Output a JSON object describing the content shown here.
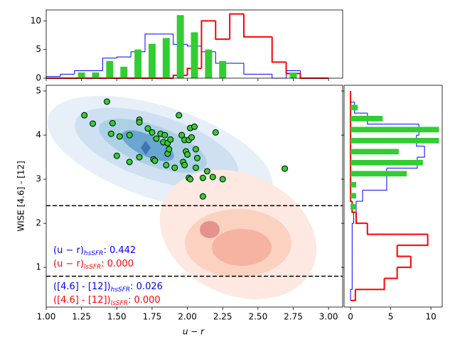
{
  "chart_data": [
    {
      "type": "scatter",
      "xlabel": "u − r",
      "ylabel": "WISE [4.6] - [12]",
      "color": "#32cd32",
      "x": [
        1.27,
        1.33,
        1.43,
        1.47,
        1.46,
        1.52,
        1.5,
        1.59,
        1.59,
        1.66,
        1.66,
        1.66,
        1.72,
        1.75,
        1.76,
        1.77,
        1.78,
        1.81,
        1.83,
        1.84,
        1.85,
        1.86,
        1.86,
        1.87,
        1.88,
        1.91,
        1.94,
        1.96,
        1.99,
        1.98,
        2.01,
        2.02,
        2.05,
        2.06,
        2.07,
        2.03,
        1.97,
        1.98,
        2.01,
        2.02,
        2.06,
        2.11,
        2.14,
        2.11,
        2.18,
        2.25,
        2.2,
        2.69,
        2.0
      ],
      "y": [
        4.45,
        4.26,
        4.76,
        4.27,
        4.03,
        3.97,
        3.53,
        4.0,
        3.39,
        4.35,
        4.29,
        3.5,
        4.15,
        4.06,
        3.45,
        3.42,
        3.92,
        4.03,
        3.84,
        4.0,
        3.32,
        3.82,
        3.58,
        3.68,
        3.9,
        3.26,
        4.45,
        4.0,
        3.63,
        3.89,
        3.89,
        4.16,
        4.19,
        3.68,
        3.48,
        3.95,
        3.39,
        3.32,
        3.03,
        3.0,
        3.26,
        3.03,
        3.18,
        2.61,
        3.05,
        3.0,
        4.06,
        3.24,
        3.56
      ],
      "xlim": [
        1.0,
        3.1
      ],
      "ylim": [
        0.1,
        5.13
      ],
      "xticks": [
        {
          "value": 1.0,
          "label": "1.00"
        },
        {
          "value": 1.25,
          "label": "1.25"
        },
        {
          "value": 1.5,
          "label": "1.50"
        },
        {
          "value": 1.75,
          "label": "1.75"
        },
        {
          "value": 2.0,
          "label": "2.00"
        },
        {
          "value": 2.25,
          "label": "2.25"
        },
        {
          "value": 2.5,
          "label": "2.50"
        },
        {
          "value": 2.75,
          "label": "2.75"
        },
        {
          "value": 3.0,
          "label": "3.00"
        }
      ],
      "yticks": [
        1,
        2,
        3,
        4,
        5
      ],
      "hlines": [
        2.4,
        0.8
      ],
      "annotations": [
        {
          "label": "(u − r)",
          "sub": "hsSFR",
          "value": ":   0.442",
          "color": "#0000ff"
        },
        {
          "label": "(u − r)",
          "sub": "lsSFR",
          "value": ":   0.000",
          "color": "#ff0000"
        },
        {
          "label": "([4.6] - [12])",
          "sub": "hsSFR",
          "value": ":   0.026",
          "color": "#0000ff"
        },
        {
          "label": "([4.6] - [12])",
          "sub": "lsSFR",
          "value": ":   0.000",
          "color": "#ff0000"
        }
      ]
    },
    {
      "type": "histogram",
      "orientation": "vertical",
      "bins": [
        1.0,
        1.1,
        1.2,
        1.3,
        1.4,
        1.5,
        1.6,
        1.7,
        1.8,
        1.9,
        2.0,
        2.1,
        2.2,
        2.3,
        2.4,
        2.5,
        2.6,
        2.7,
        2.8,
        2.9,
        3.0
      ],
      "xlim": [
        1.0,
        3.1
      ],
      "ylim": [
        0,
        11.9
      ],
      "xticks": [
        1.0,
        1.25,
        1.5,
        1.75,
        2.0,
        2.25,
        2.5,
        2.75,
        3.0
      ],
      "yticks": [
        0,
        5,
        10
      ],
      "series": [
        {
          "style": "step",
          "color": "#0000ff",
          "values": [
            0.3,
            0.7,
            1.3,
            1.3,
            3.5,
            3.7,
            4.6,
            7.7,
            7.7,
            5.9,
            5.6,
            4.6,
            2.6,
            2.6,
            0.7,
            0.7,
            0,
            1.3,
            0,
            0
          ]
        },
        {
          "style": "step",
          "color": "#ff0000",
          "values": [
            0,
            0,
            0,
            0,
            0,
            0,
            0,
            0,
            0,
            0.5,
            1.7,
            10,
            6.8,
            11.2,
            7.2,
            7.2,
            2.8,
            0.8,
            0,
            0
          ]
        },
        {
          "style": "bar",
          "color": "#32cd32",
          "values": [
            0,
            0,
            1,
            1,
            3,
            2,
            5,
            6,
            7,
            11,
            8,
            5,
            3,
            0,
            0,
            0,
            0,
            1,
            0,
            0
          ]
        }
      ]
    },
    {
      "type": "histogram",
      "orientation": "horizontal",
      "bins": [
        0.25,
        0.5,
        0.75,
        1.0,
        1.25,
        1.5,
        1.75,
        2.0,
        2.25,
        2.5,
        2.75,
        3.0,
        3.25,
        3.5,
        3.75,
        4.0,
        4.25,
        4.5,
        4.75,
        5.0
      ],
      "xlim": [
        -0.8,
        11.4
      ],
      "ylim": [
        0.1,
        5.13
      ],
      "xticks": [
        0,
        5,
        10
      ],
      "yticks": [
        1,
        2,
        3,
        4,
        5
      ],
      "series": [
        {
          "style": "step",
          "color": "#0000ff",
          "values": [
            0,
            0.2,
            0.2,
            0.2,
            0.2,
            0.2,
            0.2,
            0.4,
            0.7,
            1.5,
            4.5,
            4.5,
            8.3,
            9.2,
            8.2,
            8.5,
            2.1,
            0.5,
            0
          ]
        },
        {
          "style": "step",
          "color": "#ff0000",
          "values": [
            0.6,
            4.2,
            5.8,
            7.5,
            5.8,
            9.6,
            2.1,
            0.7,
            0.2,
            0,
            0,
            0,
            0,
            0,
            0,
            0,
            0,
            0,
            0
          ]
        },
        {
          "style": "bar",
          "color": "#32cd32",
          "values": [
            0,
            0,
            0,
            0,
            0,
            0,
            0,
            0,
            0.7,
            0.7,
            0.7,
            7,
            9,
            6,
            11,
            11,
            4,
            0.9,
            0
          ]
        }
      ]
    }
  ]
}
